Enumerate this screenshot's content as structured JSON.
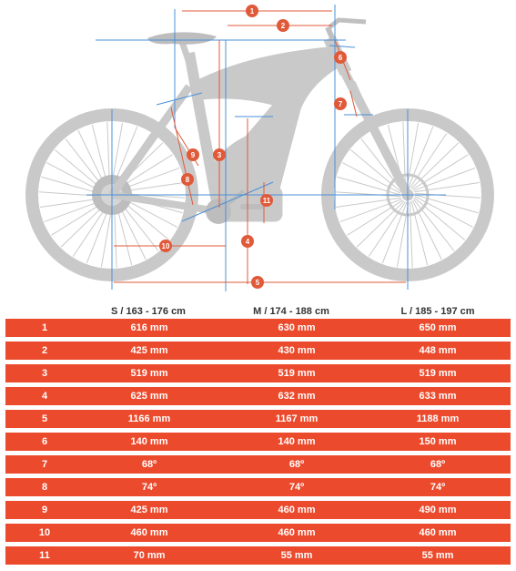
{
  "sizes": [
    "S / 163 - 176 cm",
    "M / 174 - 188 cm",
    "L / 185 - 197 cm"
  ],
  "rows": [
    {
      "id": "1",
      "values": [
        "616 mm",
        "630 mm",
        "650 mm"
      ]
    },
    {
      "id": "2",
      "values": [
        "425 mm",
        "430 mm",
        "448 mm"
      ]
    },
    {
      "id": "3",
      "values": [
        "519 mm",
        "519 mm",
        "519 mm"
      ]
    },
    {
      "id": "4",
      "values": [
        "625 mm",
        "632 mm",
        "633 mm"
      ]
    },
    {
      "id": "5",
      "values": [
        "1166 mm",
        "1167 mm",
        "1188 mm"
      ]
    },
    {
      "id": "6",
      "values": [
        "140 mm",
        "140 mm",
        "150 mm"
      ]
    },
    {
      "id": "7",
      "values": [
        "68º",
        "68º",
        "68º"
      ]
    },
    {
      "id": "8",
      "values": [
        "74º",
        "74º",
        "74º"
      ]
    },
    {
      "id": "9",
      "values": [
        "425 mm",
        "460 mm",
        "490 mm"
      ]
    },
    {
      "id": "10",
      "values": [
        "460 mm",
        "460 mm",
        "460 mm"
      ]
    },
    {
      "id": "11",
      "values": [
        "70 mm",
        "55 mm",
        "55 mm"
      ]
    }
  ],
  "badges": [
    "1",
    "2",
    "3",
    "4",
    "5",
    "6",
    "7",
    "8",
    "9",
    "10",
    "11"
  ],
  "colors": {
    "accent": "#ec4a2c",
    "frame": "#c9c9c9",
    "guide": "#4a90d9",
    "measure": "#e05a3a"
  }
}
